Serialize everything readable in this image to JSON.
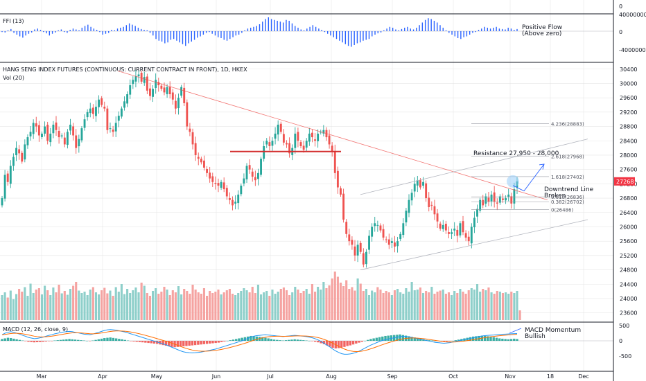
{
  "colors": {
    "up": "#26a69a",
    "down": "#ef5350",
    "upVol": "#8ecfca",
    "downVol": "#f5a3a1",
    "bg": "#ffffff",
    "grid": "#e6e6e6",
    "ffi": "#2962ff",
    "macd": "#2196f3",
    "signal": "#ff6d00",
    "price_label": "#f23645"
  },
  "chart_data": {
    "type": "candlestick",
    "title": "HANG SENG INDEX FUTURES (CONTINUOUS: CURRENT CONTRACT IN FRONT), 1D, HKEX",
    "volume_label": "Vol (20)",
    "x_ticks": [
      "Mar",
      "Apr",
      "May",
      "Jun",
      "Jul",
      "Aug",
      "Sep",
      "Oct",
      "Nov",
      "18",
      "Dec"
    ],
    "y_ticks": [
      23600,
      24000,
      24400,
      24800,
      25200,
      25600,
      26000,
      26400,
      26800,
      27200,
      27600,
      28000,
      28400,
      28800,
      29200,
      29600,
      30000,
      30400
    ],
    "ylim": [
      23400,
      30550
    ],
    "last_price": "27268",
    "fib_levels": [
      {
        "label": "4.236(28883)",
        "value": 28883
      },
      {
        "label": "2.618(27968)",
        "value": 27968
      },
      {
        "label": "1.618(27402)",
        "value": 27402
      },
      {
        "label": "0.618(26836)",
        "value": 26836
      },
      {
        "label": "0.382(26702)",
        "value": 26702
      },
      {
        "label": "0(26486)",
        "value": 26486
      }
    ],
    "resistance_value": 28100,
    "annotations": {
      "resistance": "Resistance 27,950 - 28,000",
      "downtrend_1": "Downtrend Line",
      "downtrend_2": "Broken",
      "ffi_note_1": "Positive Flow",
      "ffi_note_2": "(Above zero)",
      "macd_note_1": "MACD Momentum",
      "macd_note_2": "Bullish"
    },
    "ffi": {
      "label": "FFI (13)",
      "y_ticks": [
        "40000000",
        "0",
        "-40000000"
      ]
    },
    "macd": {
      "label": "MACD (12, 26, close, 9)",
      "y_ticks": [
        "500",
        "0",
        "-500"
      ]
    },
    "series": {
      "close": [
        26800,
        27450,
        27250,
        27700,
        27950,
        28200,
        28050,
        27820,
        28300,
        28500,
        28650,
        28900,
        28800,
        28550,
        28600,
        28800,
        28400,
        28600,
        28850,
        28700,
        28500,
        28550,
        28300,
        28650,
        28850,
        28550,
        28200,
        28450,
        28750,
        29000,
        29200,
        29300,
        29150,
        29350,
        29550,
        29400,
        29300,
        28700,
        28750,
        28650,
        28900,
        29100,
        29300,
        29500,
        29700,
        29950,
        30100,
        30200,
        30250,
        30050,
        30180,
        29800,
        29650,
        29850,
        30100,
        29950,
        29850,
        29750,
        29900,
        29700,
        29550,
        29300,
        29600,
        29900,
        29450,
        28800,
        28650,
        28300,
        28000,
        27900,
        27800,
        27650,
        27500,
        27350,
        27250,
        27200,
        27150,
        27250,
        27050,
        26850,
        26750,
        26600,
        26700,
        26900,
        27150,
        27350,
        27700,
        27600,
        27400,
        27300,
        27500,
        27900,
        28250,
        28400,
        28250,
        28400,
        28600,
        28850,
        28650,
        28350,
        28300,
        28050,
        28200,
        28600,
        28400,
        28250,
        28150,
        28400,
        28600,
        28500,
        28400,
        28600,
        28650,
        28700,
        28500,
        28300,
        28100,
        27500,
        27100,
        26900,
        26200,
        25800,
        25600,
        25500,
        25200,
        25500,
        25300,
        24950,
        25300,
        25750,
        26000,
        26100,
        26050,
        25900,
        25700,
        25650,
        25500,
        25600,
        25450,
        25600,
        25800,
        26100,
        26450,
        26750,
        26950,
        27200,
        27300,
        27100,
        27250,
        26800,
        26550,
        26600,
        26350,
        26150,
        25950,
        26050,
        25900,
        25800,
        25850,
        25950,
        25750,
        26100,
        25850,
        25700,
        25600,
        26000,
        26250,
        26500,
        26750,
        26600,
        26850,
        26700,
        26900,
        26700,
        26650,
        26850,
        26750,
        26800,
        26900,
        26650,
        27050,
        27268
      ],
      "volume_k": [
        72,
        80,
        65,
        85,
        60,
        75,
        90,
        82,
        95,
        70,
        105,
        78,
        88,
        92,
        74,
        99,
        86,
        72,
        94,
        80,
        102,
        77,
        84,
        73,
        90,
        99,
        110,
        85,
        78,
        82,
        72,
        88,
        95,
        80,
        74,
        86,
        93,
        77,
        85,
        70,
        95,
        82,
        104,
        75,
        90,
        78,
        86,
        94,
        80,
        108,
        99,
        78,
        70,
        84,
        92,
        76,
        82,
        96,
        88,
        72,
        86,
        80,
        98,
        74,
        90,
        84,
        76,
        102,
        88,
        80,
        76,
        92,
        70,
        84,
        78,
        82,
        88,
        74,
        80,
        86,
        90,
        76,
        72,
        78,
        84,
        92,
        86,
        80,
        96,
        78,
        102,
        74,
        80,
        84,
        70,
        88,
        76,
        82,
        90,
        94,
        86,
        72,
        80,
        96,
        88,
        78,
        84,
        90,
        76,
        104,
        82,
        96,
        88,
        110,
        92,
        100,
        120,
        140,
        125,
        108,
        98,
        115,
        90,
        95,
        85,
        120,
        105,
        84,
        90,
        72,
        85,
        80,
        95,
        88,
        78,
        84,
        80,
        72,
        86,
        90,
        80,
        76,
        92,
        82,
        110,
        86,
        88,
        94,
        78,
        84,
        80,
        96,
        76,
        82,
        85,
        88,
        76,
        80,
        72,
        84,
        78,
        90,
        82,
        76,
        86,
        92,
        88,
        104,
        82,
        90,
        86,
        94,
        80,
        76,
        84,
        82,
        78,
        80,
        76,
        82,
        78,
        84,
        28
      ],
      "ffi_m": [
        -2,
        -3,
        2,
        5,
        -4,
        -8,
        -12,
        -15,
        -10,
        -6,
        -3,
        4,
        6,
        3,
        -2,
        -5,
        -10,
        -6,
        -3,
        2,
        4,
        -2,
        -4,
        3,
        6,
        4,
        2,
        8,
        12,
        15,
        10,
        6,
        3,
        -2,
        -8,
        -6,
        -4,
        3,
        2,
        6,
        8,
        10,
        14,
        18,
        15,
        12,
        8,
        5,
        3,
        2,
        -4,
        -10,
        -18,
        -22,
        -24,
        -28,
        -26,
        -20,
        -18,
        -22,
        -26,
        -30,
        -34,
        -28,
        -24,
        -20,
        -15,
        -12,
        -8,
        -4,
        -2,
        -6,
        -10,
        -14,
        -16,
        -20,
        -22,
        -18,
        -14,
        -10,
        -8,
        -4,
        2,
        6,
        8,
        10,
        12,
        16,
        22,
        28,
        32,
        28,
        26,
        24,
        22,
        20,
        26,
        24,
        18,
        12,
        8,
        4,
        2,
        6,
        10,
        14,
        10,
        6,
        3,
        -2,
        -6,
        -10,
        -14,
        -18,
        -22,
        -26,
        -30,
        -34,
        -36,
        -32,
        -28,
        -26,
        -22,
        -20,
        -18,
        -12,
        -8,
        -5,
        -3,
        2,
        6,
        10,
        8,
        4,
        2,
        5,
        8,
        10,
        6,
        4,
        8,
        14,
        20,
        26,
        30,
        28,
        24,
        20,
        14,
        8,
        2,
        -4,
        -8,
        -12,
        -16,
        -18,
        -14,
        -12,
        -8,
        -4,
        -2,
        3,
        6,
        10,
        8,
        6,
        8,
        10,
        6,
        5,
        4,
        8,
        6,
        3,
        5
      ],
      "macd_hist": [
        60,
        80,
        100,
        90,
        70,
        50,
        30,
        10,
        -10,
        -30,
        -40,
        -50,
        -45,
        -40,
        -30,
        -20,
        -10,
        -5,
        10,
        20,
        30,
        40,
        50,
        60,
        50,
        40,
        30,
        20,
        10,
        0,
        -10,
        10,
        30,
        50,
        70,
        90,
        100,
        110,
        95,
        80,
        65,
        50,
        30,
        10,
        -10,
        -20,
        -30,
        -40,
        -50,
        -60,
        -70,
        -80,
        -90,
        -100,
        -120,
        -140,
        -160,
        -180,
        -200,
        -210,
        -200,
        -190,
        -180,
        -170,
        -160,
        -150,
        -140,
        -130,
        -120,
        -110,
        -100,
        -90,
        -80,
        -70,
        -60,
        -40,
        -20,
        0,
        20,
        40,
        60,
        80,
        100,
        120,
        140,
        160,
        150,
        140,
        130,
        120,
        100,
        80,
        60,
        40,
        30,
        20,
        10,
        20,
        30,
        40,
        50,
        40,
        30,
        20,
        10,
        0,
        -10,
        -30,
        -50,
        -80,
        -110,
        -150,
        -190,
        -230,
        -250,
        -240,
        -220,
        -200,
        -170,
        -150,
        -120,
        -90,
        -60,
        -30,
        0,
        30,
        60,
        80,
        100,
        120,
        140,
        160,
        170,
        180,
        190,
        200,
        210,
        190,
        170,
        150,
        130,
        110,
        90,
        70,
        50,
        30,
        20,
        10,
        0,
        -10,
        -20,
        -30,
        -20,
        -10,
        0,
        20,
        40,
        60,
        80,
        100,
        120,
        140,
        150,
        160,
        170,
        160,
        150,
        140,
        120,
        100,
        80,
        70,
        60,
        50,
        60,
        70,
        60
      ],
      "macd_line": [
        200,
        250,
        280,
        300,
        280,
        250,
        220,
        180,
        150,
        110,
        90,
        70,
        80,
        100,
        120,
        150,
        180,
        200,
        230,
        250,
        270,
        290,
        300,
        310,
        300,
        280,
        260,
        240,
        220,
        210,
        200,
        220,
        250,
        280,
        310,
        340,
        360,
        370,
        360,
        350,
        330,
        310,
        290,
        260,
        230,
        200,
        170,
        140,
        110,
        80,
        50,
        20,
        -10,
        -40,
        -70,
        -100,
        -130,
        -170,
        -210,
        -250,
        -290,
        -330,
        -360,
        -380,
        -390,
        -395,
        -390,
        -380,
        -370,
        -350,
        -330,
        -310,
        -290,
        -270,
        -240,
        -210,
        -180,
        -150,
        -120,
        -90,
        -60,
        -30,
        0,
        40,
        80,
        120,
        150,
        170,
        180,
        190,
        200,
        190,
        180,
        170,
        160,
        150,
        140,
        150,
        160,
        170,
        180,
        170,
        160,
        150,
        140,
        120,
        100,
        70,
        30,
        -20,
        -80,
        -140,
        -200,
        -270,
        -330,
        -380,
        -420,
        -440,
        -440,
        -430,
        -410,
        -380,
        -340,
        -290,
        -240,
        -190,
        -140,
        -100,
        -60,
        -20,
        10,
        40,
        60,
        80,
        100,
        120,
        140,
        150,
        140,
        130,
        110,
        90,
        70,
        50,
        30,
        10,
        -10,
        -30,
        -50,
        -60,
        -70,
        -80,
        -70,
        -60,
        -40,
        -20,
        0,
        20,
        40,
        60,
        80,
        100,
        120,
        140,
        160,
        170,
        180,
        185,
        190,
        200,
        210,
        215,
        220,
        225,
        230,
        235,
        240
      ]
    }
  }
}
